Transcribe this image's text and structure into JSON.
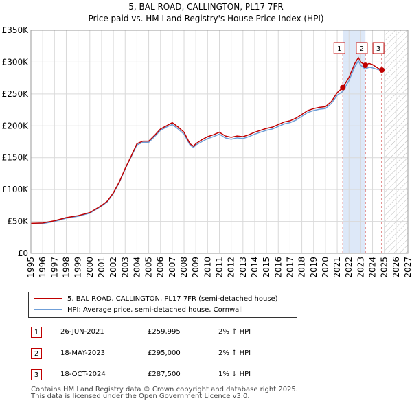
{
  "header": {
    "title_line1": "5, BAL ROAD, CALLINGTON, PL17 7FR",
    "title_line2": "Price paid vs. HM Land Registry's House Price Index (HPI)"
  },
  "colors": {
    "price_line": "#c00000",
    "hpi_line": "#6f9fd8",
    "shade": "#dde8f8",
    "grid": "#d9d9d9"
  },
  "chart_data": {
    "type": "line",
    "title": "5, BAL ROAD, CALLINGTON, PL17 7FR — Price paid vs. HM Land Registry's House Price Index (HPI)",
    "xlabel": "",
    "ylabel": "",
    "xlim": [
      1995,
      2027
    ],
    "ylim": [
      0,
      350000
    ],
    "x_ticks": [
      "1995",
      "1996",
      "1997",
      "1998",
      "1999",
      "2000",
      "2001",
      "2002",
      "2003",
      "2004",
      "2005",
      "2006",
      "2007",
      "2008",
      "2009",
      "2010",
      "2011",
      "2012",
      "2013",
      "2014",
      "2015",
      "2016",
      "2017",
      "2018",
      "2019",
      "2020",
      "2021",
      "2022",
      "2023",
      "2024",
      "2025",
      "2026",
      "2027"
    ],
    "y_ticks": [
      {
        "value": 0,
        "label": "£0"
      },
      {
        "value": 50000,
        "label": "£50K"
      },
      {
        "value": 100000,
        "label": "£100K"
      },
      {
        "value": 150000,
        "label": "£150K"
      },
      {
        "value": 200000,
        "label": "£200K"
      },
      {
        "value": 250000,
        "label": "£250K"
      },
      {
        "value": 300000,
        "label": "£300K"
      },
      {
        "value": 350000,
        "label": "£350K"
      }
    ],
    "grid": true,
    "shaded_region": {
      "from": 2021.5,
      "to": 2023.4
    },
    "future_hatch_from": 2025.0,
    "series": [
      {
        "name": "5, BAL ROAD, CALLINGTON, PL17 7FR (semi-detached house)",
        "x": [
          1995.0,
          1996.0,
          1997.0,
          1998.0,
          1999.0,
          2000.0,
          2001.0,
          2001.5,
          2002.0,
          2002.5,
          2003.0,
          2003.5,
          2004.0,
          2004.5,
          2005.0,
          2005.5,
          2006.0,
          2006.5,
          2007.0,
          2007.5,
          2008.0,
          2008.5,
          2008.8,
          2009.0,
          2009.5,
          2010.0,
          2010.5,
          2011.0,
          2011.5,
          2012.0,
          2012.5,
          2013.0,
          2013.5,
          2014.0,
          2014.5,
          2015.0,
          2015.5,
          2016.0,
          2016.5,
          2017.0,
          2017.5,
          2018.0,
          2018.5,
          2019.0,
          2019.5,
          2020.0,
          2020.5,
          2021.0,
          2021.48,
          2022.0,
          2022.5,
          2022.8,
          2023.0,
          2023.38,
          2023.7,
          2024.0,
          2024.5,
          2024.79
        ],
        "values": [
          47000,
          47500,
          51000,
          56000,
          59000,
          64000,
          75000,
          82000,
          95000,
          112000,
          133000,
          152000,
          172000,
          176000,
          176000,
          185000,
          195000,
          200000,
          205000,
          198000,
          190000,
          172000,
          168000,
          172000,
          178000,
          183000,
          186000,
          190000,
          184000,
          182000,
          184000,
          183000,
          186000,
          190000,
          193000,
          196000,
          198000,
          202000,
          206000,
          208000,
          212000,
          218000,
          224000,
          227000,
          229000,
          230000,
          238000,
          252000,
          259995,
          276000,
          298000,
          307000,
          300000,
          295000,
          298000,
          296000,
          290000,
          287500
        ]
      },
      {
        "name": "HPI: Average price, semi-detached house, Cornwall",
        "x": [
          1995.0,
          1996.0,
          1997.0,
          1998.0,
          1999.0,
          2000.0,
          2001.0,
          2001.5,
          2002.0,
          2002.5,
          2003.0,
          2003.5,
          2004.0,
          2004.5,
          2005.0,
          2005.5,
          2006.0,
          2006.5,
          2007.0,
          2007.5,
          2008.0,
          2008.5,
          2008.8,
          2009.0,
          2009.5,
          2010.0,
          2010.5,
          2011.0,
          2011.5,
          2012.0,
          2012.5,
          2013.0,
          2013.5,
          2014.0,
          2014.5,
          2015.0,
          2015.5,
          2016.0,
          2016.5,
          2017.0,
          2017.5,
          2018.0,
          2018.5,
          2019.0,
          2019.5,
          2020.0,
          2020.5,
          2021.0,
          2021.48,
          2022.0,
          2022.5,
          2022.8,
          2023.0,
          2023.38,
          2023.7,
          2024.0,
          2024.5,
          2024.79,
          2025.0
        ],
        "values": [
          46000,
          46500,
          50000,
          55000,
          58000,
          63000,
          74000,
          81000,
          94000,
          111000,
          132000,
          151000,
          170000,
          174000,
          174000,
          183000,
          193000,
          198000,
          202000,
          195000,
          187000,
          170000,
          166000,
          170000,
          175000,
          180000,
          183000,
          187000,
          181000,
          179000,
          181000,
          180000,
          183000,
          187000,
          190000,
          193000,
          195000,
          199000,
          203000,
          205000,
          209000,
          215000,
          221000,
          224000,
          226000,
          227000,
          235000,
          248000,
          254000,
          271000,
          293000,
          302000,
          295000,
          289000,
          292000,
          291000,
          288000,
          290000,
          289000
        ]
      }
    ],
    "markers": [
      {
        "label": "1",
        "x": 2021.48,
        "value": 259995
      },
      {
        "label": "2",
        "x": 2023.38,
        "value": 295000
      },
      {
        "label": "3",
        "x": 2024.79,
        "value": 287500
      }
    ]
  },
  "legend": {
    "items": [
      {
        "label": "5, BAL ROAD, CALLINGTON, PL17 7FR (semi-detached house)"
      },
      {
        "label": "HPI: Average price, semi-detached house, Cornwall"
      }
    ]
  },
  "transactions": [
    {
      "num": "1",
      "date": "26-JUN-2021",
      "price": "£259,995",
      "hpi": "2% ↑ HPI"
    },
    {
      "num": "2",
      "date": "18-MAY-2023",
      "price": "£295,000",
      "hpi": "2% ↑ HPI"
    },
    {
      "num": "3",
      "date": "18-OCT-2024",
      "price": "£287,500",
      "hpi": "1% ↓ HPI"
    }
  ],
  "footer": {
    "line1": "Contains HM Land Registry data © Crown copyright and database right 2025.",
    "line2": "This data is licensed under the Open Government Licence v3.0."
  }
}
